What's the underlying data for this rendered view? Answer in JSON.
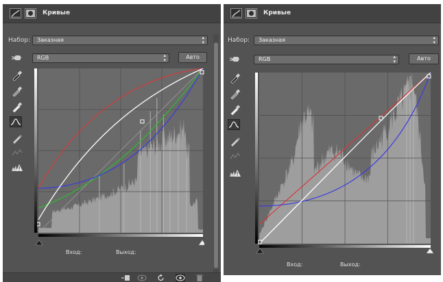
{
  "panels": [
    {
      "title": "Кривые",
      "preset_label": "Набор:",
      "preset_value": "Заказная",
      "channel_value": "RGB",
      "auto_label": "Авто",
      "input_label": "Вход:",
      "output_label": "Выход:"
    },
    {
      "title": "Кривые",
      "preset_label": "Набор:",
      "preset_value": "Заказная",
      "channel_value": "RGB",
      "auto_label": "Авто",
      "input_label": "Вход:",
      "output_label": "Выход:"
    }
  ],
  "icons": {
    "titlebar": [
      "curves-adjustment-icon",
      "layer-mask-icon"
    ],
    "tools": [
      "on-image-adjust-hand-icon",
      "black-point-eyedropper-icon",
      "gray-point-eyedropper-icon",
      "white-point-eyedropper-icon",
      "curve-point-tool-icon",
      "pencil-draw-icon",
      "smooth-curve-icon",
      "clipping-warning-icon"
    ],
    "bottom_bar": [
      "clip-to-layer-icon",
      "view-previous-state-icon",
      "reset-icon",
      "visibility-eye-icon",
      "delete-trash-icon"
    ]
  },
  "colors": {
    "panel_bg": "#535353",
    "titlebar_bg": "#424242",
    "graph_bg": "#6a6a6a",
    "histogram": "#9e9e9e",
    "curve_rgb": "#ffffff",
    "curve_red": "#d33a3a",
    "curve_green": "#2fb82f",
    "curve_blue": "#3a3ae0"
  }
}
